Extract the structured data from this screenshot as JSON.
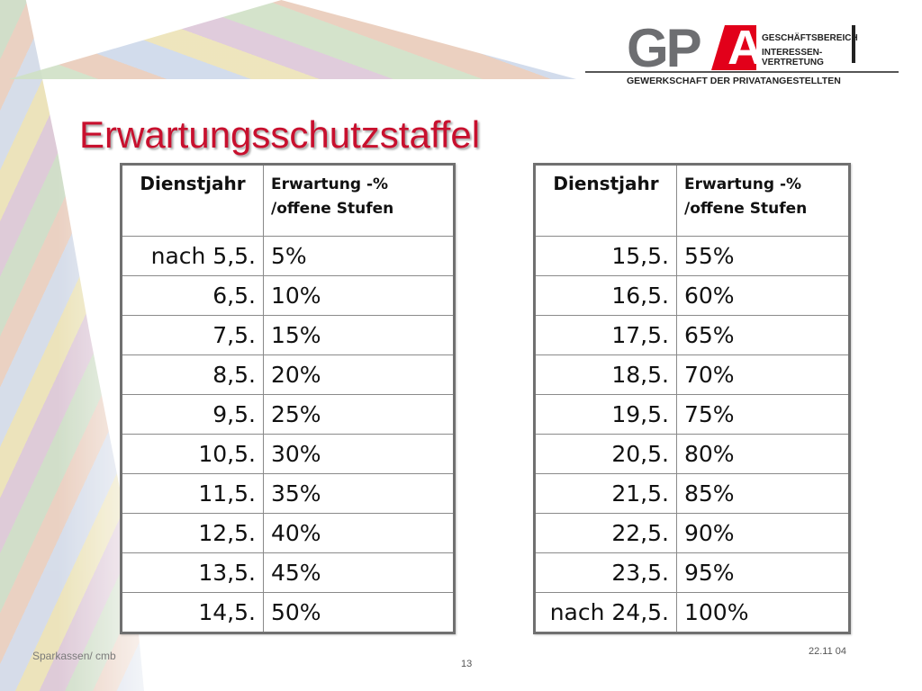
{
  "logo": {
    "mark": "GP",
    "mark_letter": "A",
    "line1": "GESCHÄFTSBEREICH",
    "line2": "INTERESSEN-",
    "line3": "VERTRETUNG",
    "tagline": "GEWERKSCHAFT DER PRIVATANGESTELLTEN",
    "accent_color": "#e2001a"
  },
  "title": "Erwartungsschutzstaffel",
  "tables": {
    "left": {
      "headers": {
        "year": "Dienstjahr",
        "expectation_line1": "Erwartung -%",
        "expectation_line2": "/offene Stufen"
      },
      "rows": [
        {
          "year": "nach 5,5.",
          "pct": "5%"
        },
        {
          "year": "6,5.",
          "pct": "10%"
        },
        {
          "year": "7,5.",
          "pct": "15%"
        },
        {
          "year": "8,5.",
          "pct": "20%"
        },
        {
          "year": "9,5.",
          "pct": "25%"
        },
        {
          "year": "10,5.",
          "pct": "30%"
        },
        {
          "year": "11,5.",
          "pct": "35%"
        },
        {
          "year": "12,5.",
          "pct": "40%"
        },
        {
          "year": "13,5.",
          "pct": "45%"
        },
        {
          "year": "14,5.",
          "pct": "50%"
        }
      ]
    },
    "right": {
      "headers": {
        "year": "Dienstjahr",
        "expectation_line1": "Erwartung -%",
        "expectation_line2": "/offene Stufen"
      },
      "rows": [
        {
          "year": "15,5.",
          "pct": "55%"
        },
        {
          "year": "16,5.",
          "pct": "60%"
        },
        {
          "year": "17,5.",
          "pct": "65%"
        },
        {
          "year": "18,5.",
          "pct": "70%"
        },
        {
          "year": "19,5.",
          "pct": "75%"
        },
        {
          "year": "20,5.",
          "pct": "80%"
        },
        {
          "year": "21,5.",
          "pct": "85%"
        },
        {
          "year": "22,5.",
          "pct": "90%"
        },
        {
          "year": "23,5.",
          "pct": "95%"
        },
        {
          "year": "nach 24,5.",
          "pct": "100%"
        }
      ]
    }
  },
  "footer": {
    "left": "Sparkassen/ cmb",
    "page": "13",
    "date": "22.11 04"
  },
  "colors": {
    "title": "#c8102e",
    "logo_gray": "#6d6e71"
  }
}
